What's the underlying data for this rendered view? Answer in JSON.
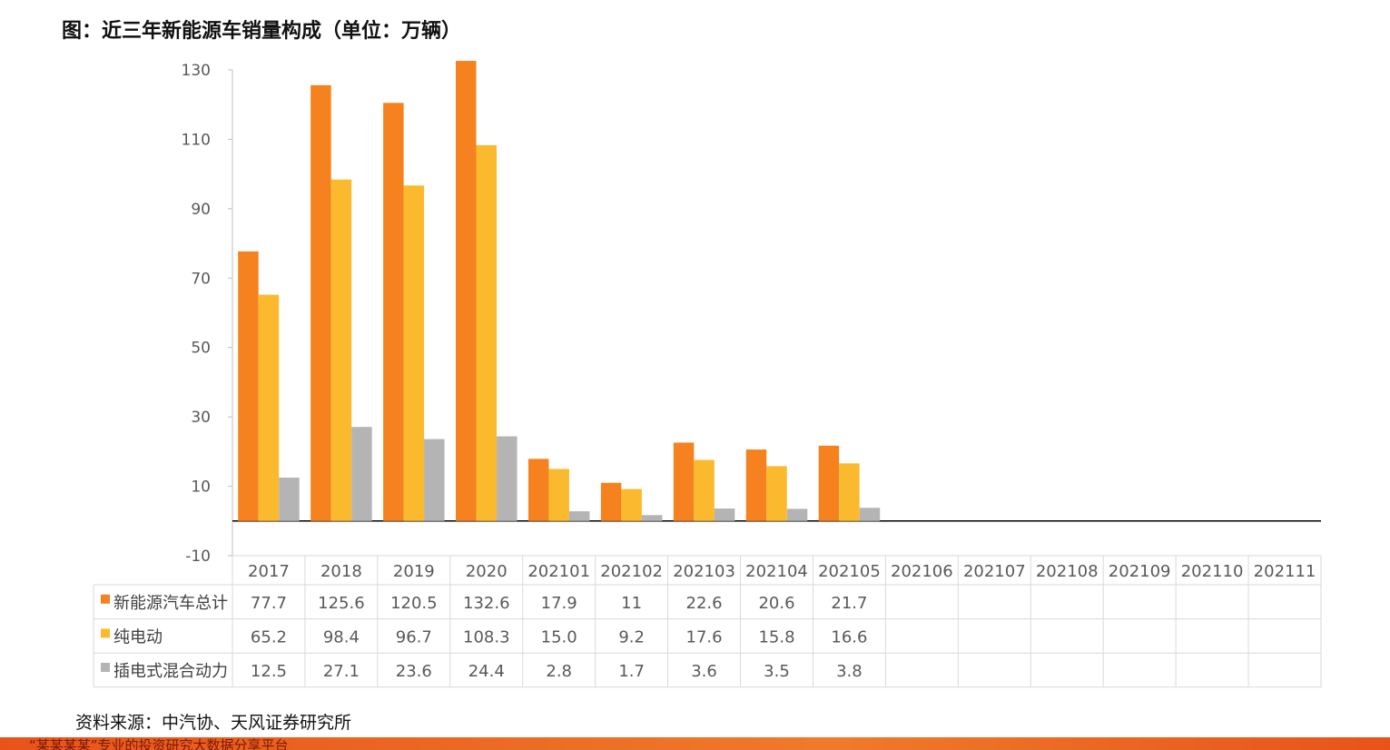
{
  "title": "图：近三年新能源车销量构成（单位：万辆）",
  "source": "资料来源：中汽协、天风证券研究所",
  "footer_banner": "“某某某某”专业的投资研究大数据分享平台",
  "colors": {
    "series1": "#F5821F",
    "series2": "#FBBA2D",
    "series3": "#B4B4B4",
    "grid": "#D9D9D9",
    "axis": "#000000"
  },
  "chart_data": {
    "type": "bar",
    "title": "",
    "xlabel": "",
    "ylabel": "",
    "ylim": [
      -10,
      130
    ],
    "yticks": [
      130,
      110,
      90,
      70,
      50,
      30,
      10,
      -10
    ],
    "ytick_labels": [
      "130",
      "110",
      "90",
      "70",
      "50",
      "30",
      "10",
      "-10"
    ],
    "categories": [
      "2017",
      "2018",
      "2019",
      "2020",
      "202101",
      "202102",
      "202103",
      "202104",
      "202105",
      "202106",
      "202107",
      "202108",
      "202109",
      "202110",
      "202111"
    ],
    "series": [
      {
        "name": "新能源汽车总计",
        "values": [
          77.7,
          125.6,
          120.5,
          132.6,
          17.9,
          11,
          22.6,
          20.6,
          21.7,
          null,
          null,
          null,
          null,
          null,
          null
        ],
        "labels": [
          "77.7",
          "125.6",
          "120.5",
          "132.6",
          "17.9",
          "11",
          "22.6",
          "20.6",
          "21.7",
          "",
          "",
          "",
          "",
          "",
          ""
        ]
      },
      {
        "name": "纯电动",
        "values": [
          65.2,
          98.4,
          96.7,
          108.3,
          15.0,
          9.2,
          17.6,
          15.8,
          16.6,
          null,
          null,
          null,
          null,
          null,
          null
        ],
        "labels": [
          "65.2",
          "98.4",
          "96.7",
          "108.3",
          "15.0",
          "9.2",
          "17.6",
          "15.8",
          "16.6",
          "",
          "",
          "",
          "",
          "",
          ""
        ]
      },
      {
        "name": "插电式混合动力",
        "values": [
          12.5,
          27.1,
          23.6,
          24.4,
          2.8,
          1.7,
          3.6,
          3.5,
          3.8,
          null,
          null,
          null,
          null,
          null,
          null
        ],
        "labels": [
          "12.5",
          "27.1",
          "23.6",
          "24.4",
          "2.8",
          "1.7",
          "3.6",
          "3.5",
          "3.8",
          "",
          "",
          "",
          "",
          "",
          ""
        ]
      }
    ],
    "data_table": true,
    "legend": "in-table"
  }
}
